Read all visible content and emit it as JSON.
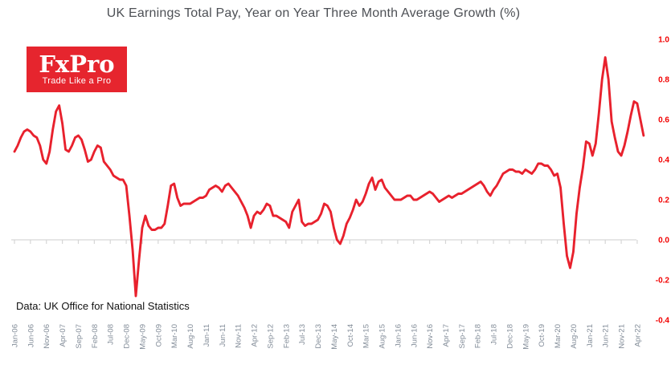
{
  "title": "UK Earnings Total Pay, Year on Year Three Month Average Growth (%)",
  "logo": {
    "brand": "FxPro",
    "tagline": "Trade Like a Pro",
    "bg_color": "#e6252e"
  },
  "source_note": "Data: UK Office for National Statistics",
  "colors": {
    "line": "#e8212d",
    "y_labels": "#f20000",
    "x_labels": "#828c98",
    "axis": "#d6d6d6",
    "title": "#4d5055",
    "source": "#111111",
    "logo_bg": "#e6252e"
  },
  "chart_data": {
    "type": "line",
    "title": "UK Earnings Total Pay, Year on Year Three Month Average Growth (%)",
    "xlabel": "",
    "ylabel": "",
    "ylim": [
      -0.4,
      1.0
    ],
    "grid": "zero-axis-only",
    "legend_position": "none",
    "x_start": "Jan-06",
    "x_end": "Jun-22",
    "x_frequency": "monthly",
    "x_tick_every_n_months": 5,
    "x_tick_labels": [
      "Jan-06",
      "Jun-06",
      "Nov-06",
      "Apr-07",
      "Sep-07",
      "Feb-08",
      "Jul-08",
      "Dec-08",
      "May-09",
      "Oct-09",
      "Mar-10",
      "Aug-10",
      "Jan-11",
      "Jun-11",
      "Nov-11",
      "Apr-12",
      "Sep-12",
      "Feb-13",
      "Jul-13",
      "Dec-13",
      "May-14",
      "Oct-14",
      "Mar-15",
      "Aug-15",
      "Jan-16",
      "Jun-16",
      "Nov-16",
      "Apr-17",
      "Sep-17",
      "Feb-18",
      "Jul-18",
      "Dec-18",
      "May-19",
      "Oct-19",
      "Mar-20",
      "Aug-20",
      "Jan-21",
      "Jun-21",
      "Nov-21",
      "Apr-22"
    ],
    "y_tick_labels": [
      "1.0",
      "0.8",
      "0.6",
      "0.4",
      "0.2",
      "0.0",
      "-0.2",
      "-0.4"
    ],
    "y_tick_values": [
      1.0,
      0.8,
      0.6,
      0.4,
      0.2,
      0.0,
      -0.2,
      -0.4
    ],
    "series": [
      {
        "name": "Total pay YoY 3-month average growth (%)",
        "values": [
          0.44,
          0.47,
          0.51,
          0.54,
          0.55,
          0.54,
          0.52,
          0.51,
          0.47,
          0.4,
          0.38,
          0.44,
          0.55,
          0.64,
          0.67,
          0.58,
          0.45,
          0.44,
          0.47,
          0.51,
          0.52,
          0.5,
          0.45,
          0.39,
          0.4,
          0.44,
          0.47,
          0.46,
          0.39,
          0.37,
          0.35,
          0.32,
          0.31,
          0.3,
          0.3,
          0.27,
          0.12,
          -0.05,
          -0.28,
          -0.1,
          0.06,
          0.12,
          0.07,
          0.05,
          0.05,
          0.06,
          0.06,
          0.08,
          0.17,
          0.27,
          0.28,
          0.21,
          0.17,
          0.18,
          0.18,
          0.18,
          0.19,
          0.2,
          0.21,
          0.21,
          0.22,
          0.25,
          0.26,
          0.27,
          0.26,
          0.24,
          0.27,
          0.28,
          0.26,
          0.24,
          0.22,
          0.19,
          0.16,
          0.12,
          0.06,
          0.12,
          0.14,
          0.13,
          0.15,
          0.18,
          0.17,
          0.12,
          0.12,
          0.11,
          0.1,
          0.09,
          0.06,
          0.14,
          0.17,
          0.2,
          0.09,
          0.07,
          0.08,
          0.08,
          0.09,
          0.1,
          0.13,
          0.18,
          0.17,
          0.14,
          0.06,
          0.0,
          -0.02,
          0.02,
          0.08,
          0.11,
          0.15,
          0.2,
          0.17,
          0.19,
          0.23,
          0.28,
          0.31,
          0.25,
          0.29,
          0.3,
          0.26,
          0.24,
          0.22,
          0.2,
          0.2,
          0.2,
          0.21,
          0.22,
          0.22,
          0.2,
          0.2,
          0.21,
          0.22,
          0.23,
          0.24,
          0.23,
          0.21,
          0.19,
          0.2,
          0.21,
          0.22,
          0.21,
          0.22,
          0.23,
          0.23,
          0.24,
          0.25,
          0.26,
          0.27,
          0.28,
          0.29,
          0.27,
          0.24,
          0.22,
          0.25,
          0.27,
          0.3,
          0.33,
          0.34,
          0.35,
          0.35,
          0.34,
          0.34,
          0.33,
          0.35,
          0.34,
          0.33,
          0.35,
          0.38,
          0.38,
          0.37,
          0.37,
          0.35,
          0.32,
          0.33,
          0.26,
          0.08,
          -0.08,
          -0.14,
          -0.06,
          0.13,
          0.26,
          0.36,
          0.49,
          0.48,
          0.42,
          0.48,
          0.63,
          0.8,
          0.91,
          0.8,
          0.59,
          0.51,
          0.44,
          0.42,
          0.47,
          0.54,
          0.62,
          0.69,
          0.68,
          0.6,
          0.52
        ]
      }
    ]
  }
}
